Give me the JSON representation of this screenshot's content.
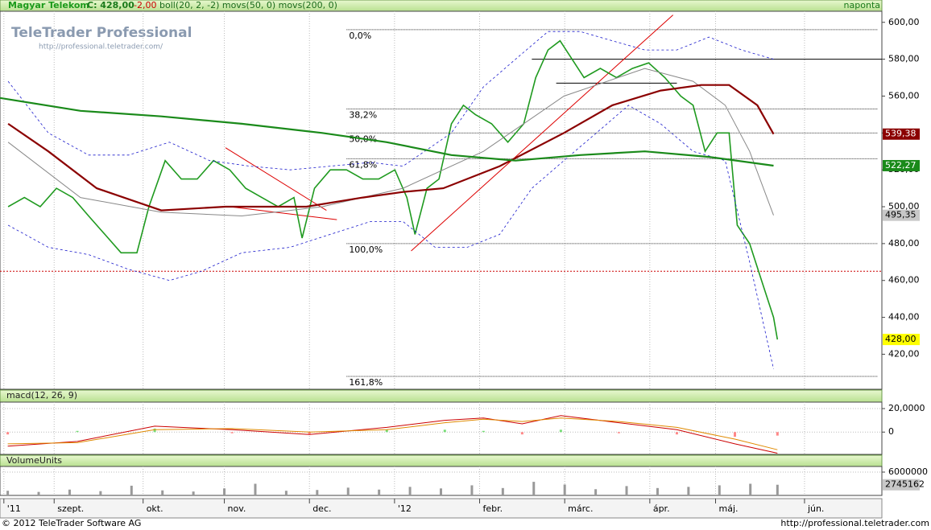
{
  "logo": {
    "title": "TeleTrader Professional",
    "url": "http://professional.teletrader.com/"
  },
  "footer": {
    "copyright": "© 2012 TeleTrader Software AG",
    "url": "http://professional.teletrader.com"
  },
  "chart_data": [
    {
      "type": "line",
      "title": "Magyar Telekom",
      "close_label": "C: 428,00",
      "change_label": "-2,00",
      "indicators_label": "boll(20, 2, -2) movs(50, 0) movs(200, 0)",
      "period_label": "naponta",
      "xlim": [
        0,
        228
      ],
      "xticks": [
        {
          "value": 1,
          "label": "'11"
        },
        {
          "value": 14,
          "label": "szept."
        },
        {
          "value": 37,
          "label": "okt."
        },
        {
          "value": 58,
          "label": "nov."
        },
        {
          "value": 80,
          "label": "dec."
        },
        {
          "value": 102,
          "label": "'12"
        },
        {
          "value": 124,
          "label": "febr."
        },
        {
          "value": 146,
          "label": "márc."
        },
        {
          "value": 168,
          "label": "ápr."
        },
        {
          "value": 185,
          "label": "máj."
        },
        {
          "value": 208,
          "label": "jún."
        }
      ],
      "ylim": [
        401,
        606
      ],
      "yticks": [
        {
          "value": 600,
          "label": "600,00"
        },
        {
          "value": 580,
          "label": "580,00"
        },
        {
          "value": 560,
          "label": "560,00"
        },
        {
          "value": 540,
          "label": "540,00"
        },
        {
          "value": 520,
          "label": "520,00"
        },
        {
          "value": 500,
          "label": "500,00"
        },
        {
          "value": 480,
          "label": "480,00"
        },
        {
          "value": 460,
          "label": "460,00"
        },
        {
          "value": 440,
          "label": "440,00"
        },
        {
          "value": 420,
          "label": "420,00"
        }
      ],
      "grid": true,
      "series": [
        {
          "color": "#1f9a1f",
          "width": 1.6,
          "label_color": "#ffff00",
          "last_label": "428,00",
          "x": [
            2.1,
            6.3,
            10.4,
            14.6,
            18.8,
            22.9,
            27.1,
            31.3,
            35.4,
            38.5,
            42.7,
            46.9,
            51,
            55.2,
            59.4,
            63.5,
            67.7,
            71.9,
            76,
            78.1,
            81.3,
            85.4,
            89.6,
            93.8,
            97.9,
            102.1,
            105.2,
            107.3,
            110.4,
            113.5,
            116.7,
            119.8,
            122.9,
            127.1,
            131.3,
            135.4,
            138.5,
            141.7,
            144.8,
            147.9,
            151,
            155.2,
            159.4,
            163.5,
            167.7,
            171.9,
            176,
            179.2,
            182.3,
            185.4,
            188.5,
            190.6,
            193.8,
            196.9,
            200,
            201
          ],
          "values": [
            500,
            505,
            500,
            510,
            505,
            495,
            485,
            475,
            475,
            500,
            525,
            515,
            515,
            525,
            520,
            510,
            505,
            500,
            505,
            483,
            510,
            520,
            520,
            515,
            515,
            520,
            505,
            485,
            510,
            515,
            545,
            555,
            550,
            545,
            535,
            545,
            570,
            585,
            590,
            580,
            570,
            575,
            570,
            575,
            578,
            570,
            560,
            555,
            530,
            540,
            540,
            490,
            480,
            460,
            440,
            428
          ]
        },
        {
          "color": "#1a1acc",
          "width": 0.8,
          "dash": "3,3",
          "x": [
            2.1,
            12.5,
            22.9,
            33.3,
            43.8,
            54.2,
            64.6,
            75,
            85.4,
            95.8,
            104.2,
            116.7,
            125,
            133.3,
            141.7,
            150,
            158.3,
            166.7,
            175,
            183.3,
            191.7,
            200
          ],
          "values": [
            568,
            540,
            528,
            528,
            535,
            525,
            522,
            520,
            522,
            524,
            522,
            540,
            565,
            580,
            595,
            595,
            590,
            585,
            585,
            592,
            585,
            580
          ]
        },
        {
          "color": "#1a1acc",
          "width": 0.8,
          "dash": "3,3",
          "x": [
            2.1,
            12.5,
            22.9,
            33.3,
            43.8,
            52.1,
            62.5,
            75,
            85.4,
            95.8,
            104.2,
            112.5,
            120.8,
            129.2,
            137.5,
            145.8,
            154.2,
            162.5,
            170.8,
            179.2,
            187.5,
            193.8,
            200
          ],
          "values": [
            490,
            478,
            474,
            466,
            460,
            465,
            475,
            478,
            485,
            492,
            492,
            478,
            478,
            485,
            510,
            525,
            540,
            555,
            545,
            530,
            525,
            470,
            412
          ]
        },
        {
          "color": "#888888",
          "width": 1,
          "label_color": "#c8c8c8",
          "last_label": "495,35",
          "x": [
            2.1,
            20.8,
            41.7,
            62.5,
            83.3,
            104.2,
            125,
            145.8,
            166.7,
            179.2,
            187.5,
            193.8,
            200
          ],
          "values": [
            535,
            505,
            497,
            495,
            500,
            510,
            530,
            560,
            575,
            568,
            555,
            530,
            495.35
          ]
        },
        {
          "color": "#8b0000",
          "width": 2.2,
          "label_color": "#8b0000",
          "label_text": "#ffffff",
          "last_label": "539,38",
          "x": [
            2.1,
            12.5,
            25,
            41.7,
            58.3,
            79.2,
            93.8,
            104.2,
            114.6,
            129.2,
            145.8,
            158.3,
            170.8,
            181.3,
            188.5,
            195.8,
            200
          ],
          "values": [
            545,
            530,
            510,
            498,
            500,
            500,
            505,
            508,
            510,
            522,
            540,
            555,
            563,
            566,
            566,
            555,
            539.38
          ]
        },
        {
          "color": "#1a8a1a",
          "width": 2.2,
          "label_color": "#1a8a1a",
          "label_text": "#ffffff",
          "last_label": "522,27",
          "x": [
            0,
            20.8,
            41.7,
            62.5,
            83.3,
            100,
            116.7,
            133.3,
            150,
            166.7,
            183.3,
            200
          ],
          "values": [
            559,
            552,
            549,
            545,
            540,
            535,
            528,
            525,
            528,
            530,
            527,
            522.27
          ]
        }
      ],
      "fibonacci": {
        "start_x": 89.6,
        "levels": [
          {
            "label": "0,0%",
            "value": 596
          },
          {
            "label": "38,2%",
            "value": 553
          },
          {
            "label": "50,0%",
            "value": 540
          },
          {
            "label": "61,8%",
            "value": 526
          },
          {
            "label": "100,0%",
            "value": 480
          },
          {
            "label": "161,8%",
            "value": 408
          }
        ]
      },
      "lines": [
        {
          "color": "#000000",
          "x": [
            137.5,
            228
          ],
          "y": [
            580,
            580
          ]
        },
        {
          "color": "#000000",
          "x": [
            143.8,
            175
          ],
          "y": [
            567,
            567
          ]
        },
        {
          "color": "#cc0000",
          "x": [
            0,
            228
          ],
          "y": [
            465,
            465
          ],
          "dash": "2,2"
        },
        {
          "color": "#dd0000",
          "x": [
            106.3,
            174
          ],
          "y": [
            476,
            604
          ]
        },
        {
          "color": "#dd0000",
          "x": [
            58.3,
            84.4
          ],
          "y": [
            532,
            498
          ]
        },
        {
          "color": "#dd0000",
          "x": [
            59.4,
            87.1
          ],
          "y": [
            500,
            493
          ]
        }
      ]
    },
    {
      "type": "line",
      "title": "macd(12, 26, 9)",
      "ylim": [
        -19,
        25.5
      ],
      "yticks": [
        {
          "value": 20,
          "label": "20,0000"
        },
        0
      ],
      "series": [
        {
          "kind": "bar",
          "pos_color": "#77dd77",
          "neg_color": "#ff8888",
          "x": [
            2,
            20,
            40,
            60,
            80,
            100,
            115,
            125,
            135,
            145,
            160,
            175,
            190,
            201
          ],
          "values": [
            -2,
            1,
            3,
            -1,
            -2,
            2,
            2,
            1,
            -2,
            2,
            -1,
            -2,
            -4,
            -3
          ]
        },
        {
          "color": "#cc0000",
          "width": 1,
          "x": [
            2,
            20,
            40,
            60,
            80,
            100,
            115,
            125,
            135,
            145,
            160,
            175,
            190,
            201
          ],
          "values": [
            -12,
            -8,
            5,
            2,
            -2,
            4,
            10,
            12,
            7,
            14,
            8,
            2,
            -10,
            -18
          ]
        },
        {
          "color": "#e08a00",
          "width": 1,
          "x": [
            2,
            20,
            40,
            60,
            80,
            100,
            115,
            125,
            135,
            145,
            160,
            175,
            190,
            201
          ],
          "values": [
            -10,
            -9,
            2,
            3,
            0,
            2,
            8,
            11,
            9,
            12,
            9,
            4,
            -6,
            -15
          ]
        }
      ]
    },
    {
      "type": "bar",
      "title": "VolumeUnits",
      "ylim": [
        0,
        7450000
      ],
      "yticks": [
        6000000
      ],
      "series": [
        {
          "kind": "bar",
          "pos_color": "#999999",
          "label_color": "#c8c8c8",
          "last_label": "2745162",
          "x": [
            2,
            10,
            18,
            26,
            34,
            42,
            50,
            58,
            66,
            74,
            82,
            90,
            98,
            106,
            114,
            122,
            130,
            138,
            146,
            154,
            162,
            170,
            178,
            186,
            194,
            201
          ],
          "values": [
            1200000,
            900000,
            1500000,
            1100000,
            2500000,
            1300000,
            1000000,
            1800000,
            3000000,
            1200000,
            1400000,
            2000000,
            1500000,
            2200000,
            1800000,
            2600000,
            1900000,
            3500000,
            2800000,
            1600000,
            2400000,
            1900000,
            2200000,
            2600000,
            3000000,
            2745162
          ]
        }
      ]
    }
  ]
}
